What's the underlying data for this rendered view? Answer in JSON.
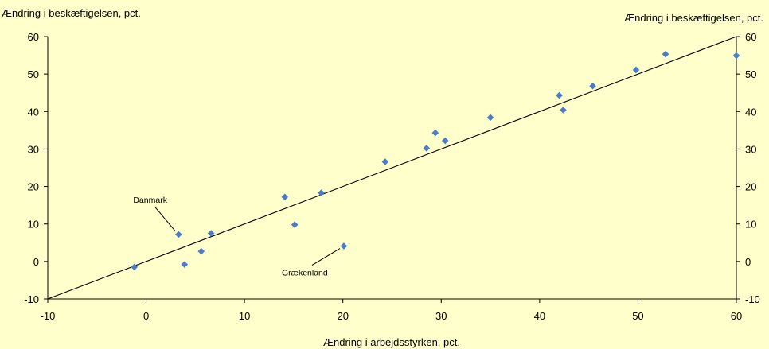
{
  "chart_data": {
    "type": "scatter",
    "title": "",
    "ylabel_left": "Ændring i beskæftigelsen, pct.",
    "ylabel_right": "Ændring i beskæftigelsen, pct.",
    "xlabel": "Ændring i arbejdsstyrken, pct.",
    "xlim": [
      -10,
      60
    ],
    "ylim": [
      -10,
      60
    ],
    "xticks": [
      -10,
      0,
      10,
      20,
      30,
      40,
      50,
      60
    ],
    "yticks": [
      -10,
      0,
      10,
      20,
      30,
      40,
      50,
      60
    ],
    "grid": false,
    "point_color": "#4a7cc8",
    "line_color": "#000000",
    "points": [
      {
        "x": -1.2,
        "y": -1.5
      },
      {
        "x": 3.3,
        "y": 7.2
      },
      {
        "x": 3.9,
        "y": -0.8
      },
      {
        "x": 5.6,
        "y": 2.7
      },
      {
        "x": 6.6,
        "y": 7.5
      },
      {
        "x": 14.1,
        "y": 17.2
      },
      {
        "x": 15.1,
        "y": 9.8
      },
      {
        "x": 17.8,
        "y": 18.3
      },
      {
        "x": 20.1,
        "y": 4.1
      },
      {
        "x": 24.3,
        "y": 26.6
      },
      {
        "x": 28.5,
        "y": 30.2
      },
      {
        "x": 29.4,
        "y": 34.3
      },
      {
        "x": 30.4,
        "y": 32.2
      },
      {
        "x": 35.0,
        "y": 38.4
      },
      {
        "x": 42.0,
        "y": 44.3
      },
      {
        "x": 42.4,
        "y": 40.4
      },
      {
        "x": 45.4,
        "y": 46.8
      },
      {
        "x": 49.8,
        "y": 51.1
      },
      {
        "x": 52.8,
        "y": 55.3
      },
      {
        "x": 60.0,
        "y": 54.9
      }
    ],
    "reference_line": {
      "from": [
        -10,
        -10
      ],
      "to": [
        60,
        60
      ]
    },
    "annotations": [
      {
        "label": "Danmark",
        "x": 3.3,
        "y": 7.2
      },
      {
        "label": "Grækenland",
        "x": 20.1,
        "y": 4.1
      }
    ]
  }
}
